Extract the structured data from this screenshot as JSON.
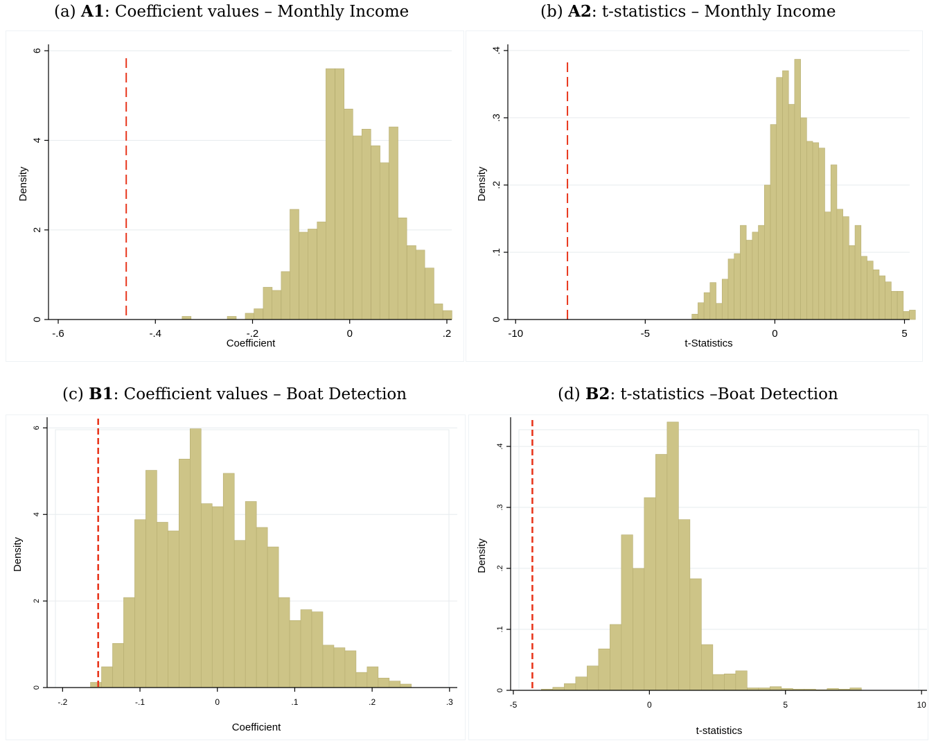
{
  "captions": [
    {
      "prefix": "(a)",
      "tag": "A1",
      "text": ": Coefficient values – Monthly Income"
    },
    {
      "prefix": "(b)",
      "tag": "A2",
      "text": ": t-statistics – Monthly Income"
    },
    {
      "prefix": "(c)",
      "tag": "B1",
      "text": ": Coefficient values – Boat Detection"
    },
    {
      "prefix": "(d)",
      "tag": "B2",
      "text": ": t-statistics –Boat Detection"
    }
  ],
  "colors": {
    "bar_fill": "#cdc487",
    "bar_stroke": "#b5ac6f",
    "reference_line": "#e8361c",
    "grid": "#e6ebee"
  },
  "chart_data": [
    {
      "type": "bar",
      "title": "",
      "xlabel": "Coefficient",
      "ylabel": "Density",
      "xlim": [
        -0.62,
        0.21
      ],
      "ylim": [
        0,
        6.05
      ],
      "xticks": [
        {
          "v": -0.6,
          "label": "-.6"
        },
        {
          "v": -0.4,
          "label": "-.4"
        },
        {
          "v": -0.2,
          "label": "-.2"
        },
        {
          "v": 0,
          "label": "0"
        },
        {
          "v": 0.2,
          "label": ".2"
        }
      ],
      "yticks": [
        {
          "v": 0,
          "label": "0"
        },
        {
          "v": 2,
          "label": "2"
        },
        {
          "v": 4,
          "label": "4"
        },
        {
          "v": 6,
          "label": "6"
        }
      ],
      "bin_width": 0.0185,
      "bin_start": [
        -0.345,
        -0.252,
        -0.215,
        -0.197,
        -0.178,
        -0.16,
        -0.141,
        -0.123,
        -0.104,
        -0.086,
        -0.067,
        -0.049,
        -0.03,
        -0.012,
        0.007,
        0.025,
        0.044,
        0.062,
        0.081,
        0.099,
        0.118,
        0.136,
        0.155,
        0.173,
        0.192
      ],
      "values": [
        0.07,
        0.07,
        0.14,
        0.24,
        0.72,
        0.65,
        1.07,
        2.46,
        1.95,
        2.02,
        2.18,
        5.6,
        5.6,
        4.7,
        4.1,
        4.25,
        3.88,
        3.5,
        4.3,
        2.27,
        1.65,
        1.55,
        1.15,
        0.35,
        0.2
      ],
      "reference_line": -0.46
    },
    {
      "type": "bar",
      "title": "",
      "xlabel": "t-Statistics",
      "ylabel": "Density",
      "xlim": [
        -10.3,
        5.2
      ],
      "ylim": [
        0,
        0.403
      ],
      "xticks": [
        {
          "v": -10,
          "label": "-10"
        },
        {
          "v": -5,
          "label": "-5"
        },
        {
          "v": 0,
          "label": "0"
        },
        {
          "v": 5,
          "label": "5"
        }
      ],
      "yticks": [
        {
          "v": 0,
          "label": "0"
        },
        {
          "v": 0.1,
          "label": ".1"
        },
        {
          "v": 0.2,
          "label": ".2"
        },
        {
          "v": 0.3,
          "label": ".3"
        },
        {
          "v": 0.4,
          "label": ".4"
        }
      ],
      "bin_start": -3.2,
      "bin_width": 0.233,
      "values": [
        0.008,
        0.025,
        0.04,
        0.055,
        0.024,
        0.06,
        0.09,
        0.098,
        0.14,
        0.118,
        0.13,
        0.14,
        0.2,
        0.29,
        0.36,
        0.37,
        0.32,
        0.387,
        0.3,
        0.265,
        0.263,
        0.255,
        0.16,
        0.23,
        0.164,
        0.153,
        0.11,
        0.14,
        0.094,
        0.087,
        0.074,
        0.065,
        0.056,
        0.042,
        0.042,
        0.012,
        0.014
      ],
      "reference_line": -8
    },
    {
      "type": "bar",
      "title": "",
      "xlabel": "Coefficient",
      "ylabel": "Density",
      "xlim": [
        -0.22,
        0.31
      ],
      "ylim": [
        0,
        6.15
      ],
      "xticks": [
        {
          "v": -0.2,
          "label": "-.2"
        },
        {
          "v": -0.1,
          "label": "-.1"
        },
        {
          "v": 0,
          "label": "0"
        },
        {
          "v": 0.1,
          "label": ".1"
        },
        {
          "v": 0.2,
          "label": ".2"
        },
        {
          "v": 0.3,
          "label": ".3"
        }
      ],
      "yticks": [
        {
          "v": 0,
          "label": "0"
        },
        {
          "v": 2,
          "label": "2"
        },
        {
          "v": 4,
          "label": "4"
        },
        {
          "v": 6,
          "label": "6"
        }
      ],
      "bin_start": -0.164,
      "bin_width": 0.0143,
      "values": [
        0.12,
        0.48,
        1.02,
        2.08,
        3.88,
        5.02,
        3.82,
        3.62,
        5.28,
        5.98,
        4.25,
        4.18,
        4.95,
        3.4,
        4.3,
        3.7,
        3.25,
        2.08,
        1.55,
        1.8,
        1.75,
        0.98,
        0.92,
        0.85,
        0.35,
        0.48,
        0.22,
        0.15,
        0.08
      ],
      "reference_line": -0.154
    },
    {
      "type": "bar",
      "title": "",
      "xlabel": "t-statistics",
      "ylabel": "Density",
      "xlim": [
        -5.1,
        10.2
      ],
      "ylim": [
        0,
        0.441
      ],
      "xticks": [
        {
          "v": -5,
          "label": "-5"
        },
        {
          "v": 0,
          "label": "0"
        },
        {
          "v": 5,
          "label": "5"
        },
        {
          "v": 10,
          "label": "10"
        }
      ],
      "yticks": [
        {
          "v": 0,
          "label": "0"
        },
        {
          "v": 0.1,
          "label": ".1"
        },
        {
          "v": 0.2,
          "label": ".2"
        },
        {
          "v": 0.3,
          "label": ".3"
        },
        {
          "v": 0.4,
          "label": ".4"
        }
      ],
      "bin_start": -3.97,
      "bin_width": 0.42,
      "values": [
        0.002,
        0.005,
        0.011,
        0.022,
        0.04,
        0.068,
        0.108,
        0.255,
        0.2,
        0.316,
        0.387,
        0.44,
        0.28,
        0.183,
        0.075,
        0.026,
        0.027,
        0.032,
        0.004,
        0.004,
        0.006,
        0.003,
        0.002,
        0.002,
        0.001,
        0.003,
        0.002,
        0.004
      ],
      "reference_line": -4.3
    }
  ]
}
